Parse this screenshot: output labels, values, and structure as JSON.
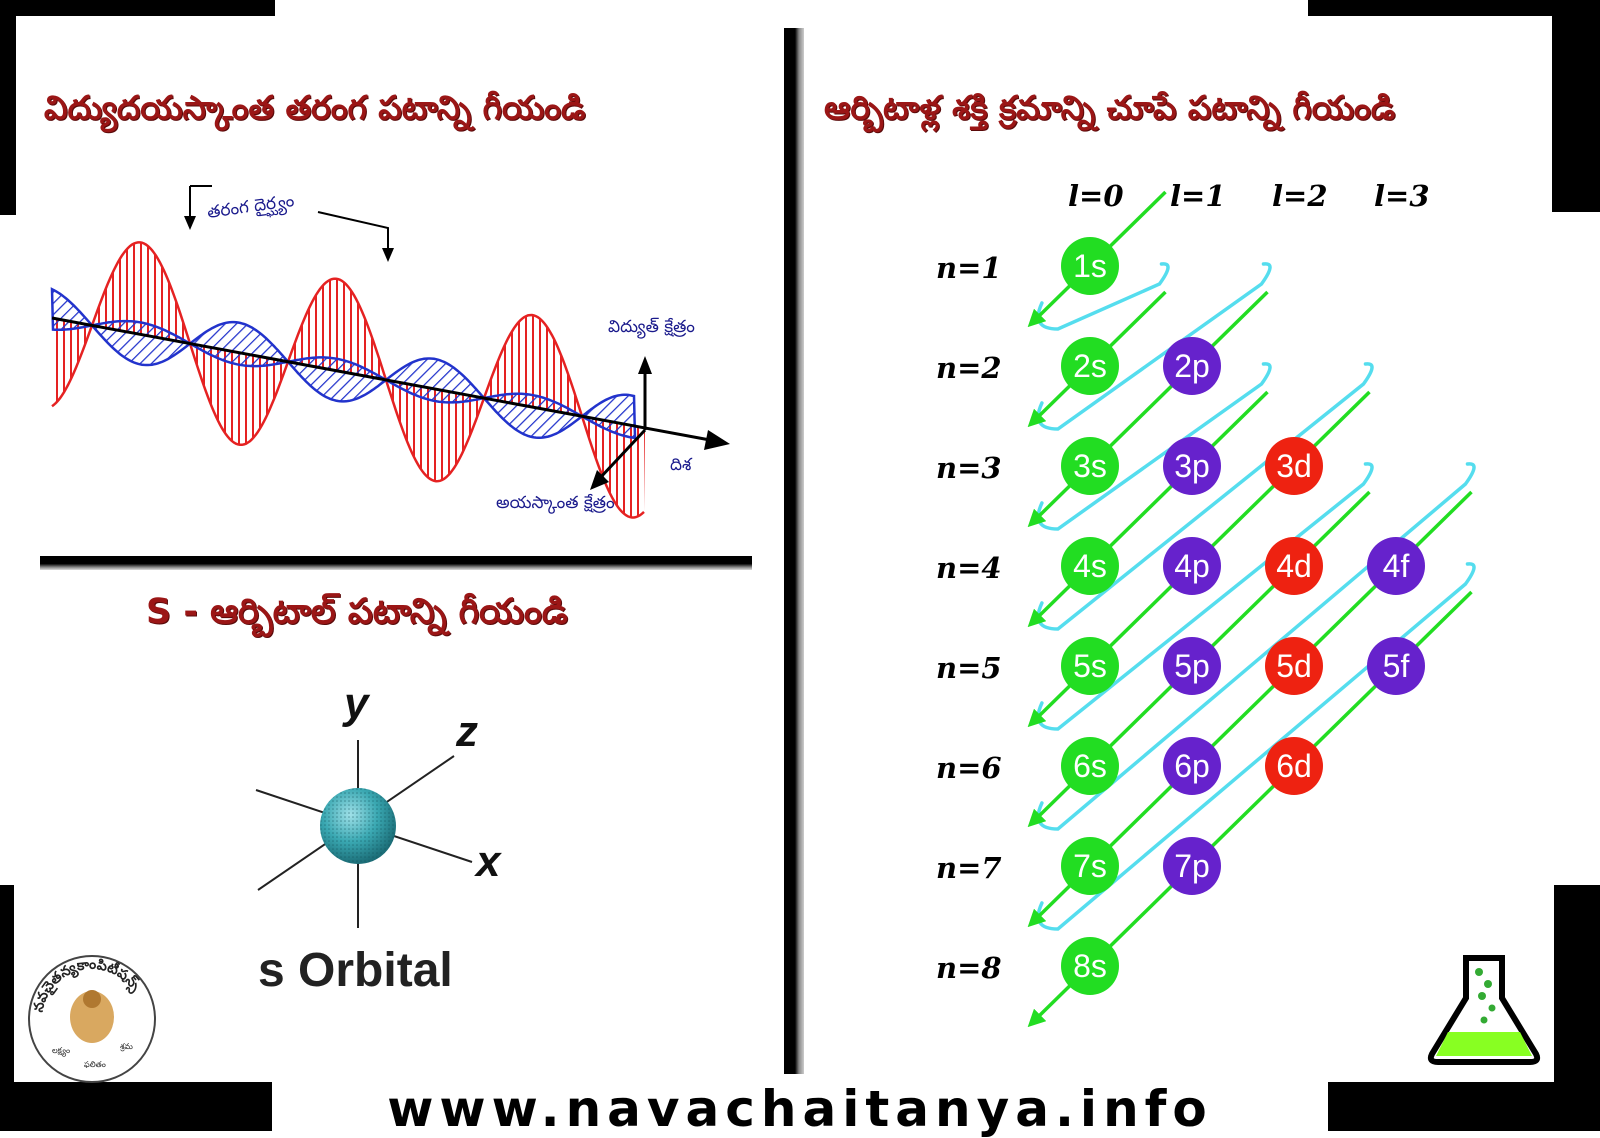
{
  "left_top": {
    "title": "విద్యుదయస్కాంత తరంగ పటాన్ని గీయండి",
    "labels": {
      "wavelength": "తరంగ దైర్ఘ్యం",
      "electric_field": "విద్యుత్ క్షేత్రం",
      "direction": "దిశ",
      "magnetic_field": "అయస్కాంత క్షేత్రం"
    }
  },
  "left_bottom": {
    "title": "S - ఆర్బిటాల్ పటాన్ని గీయండి",
    "axes": {
      "x": "x",
      "y": "y",
      "z": "z"
    },
    "caption": "s Orbital"
  },
  "right": {
    "title": "ఆర్బిటాళ్ల శక్తి క్రమాన్ని చూపే పటాన్ని గీయండి",
    "columns": [
      "l=0",
      "l=1",
      "l=2",
      "l=3"
    ],
    "rows": [
      "n=1",
      "n=2",
      "n=3",
      "n=4",
      "n=5",
      "n=6",
      "n=7",
      "n=8"
    ],
    "orbitals": [
      [
        "1s"
      ],
      [
        "2s",
        "2p"
      ],
      [
        "3s",
        "3p",
        "3d"
      ],
      [
        "4s",
        "4p",
        "4d",
        "4f"
      ],
      [
        "5s",
        "5p",
        "5d",
        "5f"
      ],
      [
        "6s",
        "6p",
        "6d"
      ],
      [
        "7s",
        "7p"
      ],
      [
        "8s"
      ]
    ],
    "colors": {
      "s": "#22dd22",
      "p": "#6622cc",
      "d": "#ee2211",
      "f": "#6622cc",
      "arrow": "#22dd22",
      "loop": "#55ddee"
    }
  },
  "logo": {
    "ring_text": "నవచైతన్యకాంపిటీషన్స్",
    "motto": [
      "లక్ష్యం",
      "శ్రమ",
      "ఫలితం"
    ]
  },
  "footer": {
    "url": "www.navachaitanya.info"
  }
}
